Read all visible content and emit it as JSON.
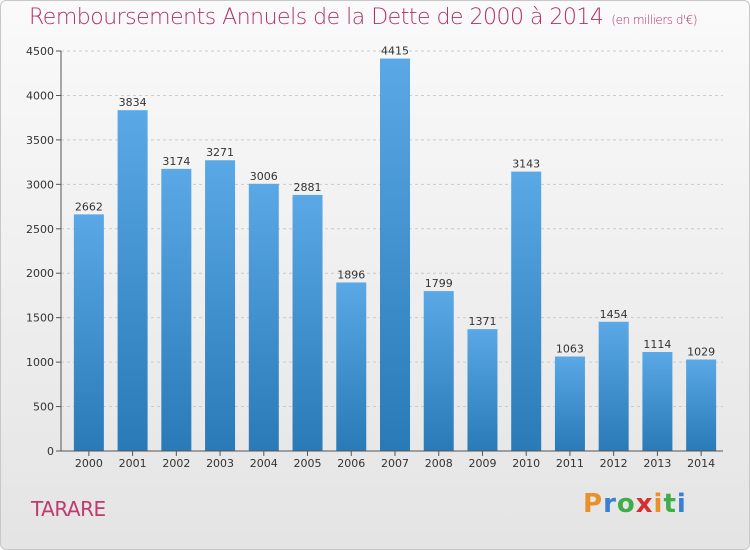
{
  "title": "Remboursements Annuels de la Dette de 2000 à 2014",
  "subtitle": "(en milliers d'€)",
  "city": "TARARE",
  "logo": {
    "text": "Proxiti",
    "letters": [
      "P",
      "r",
      "o",
      "x",
      "i",
      "t",
      "i"
    ]
  },
  "colors": {
    "title": "#b0306a",
    "bar_top": "#5aa8e6",
    "bar_bottom": "#2a7ab8",
    "grid": "#cccccc",
    "logo": [
      "#e8902a",
      "#3a7fd1",
      "#3fae49",
      "#d62f2f",
      "#e8902a",
      "#3fae49",
      "#3a7fd1"
    ]
  },
  "chart_data": {
    "type": "bar",
    "title": "Remboursements Annuels de la Dette de 2000 à 2014",
    "subtitle": "(en milliers d'€)",
    "xlabel": "",
    "ylabel": "",
    "categories": [
      "2000",
      "2001",
      "2002",
      "2003",
      "2004",
      "2005",
      "2006",
      "2007",
      "2008",
      "2009",
      "2010",
      "2011",
      "2012",
      "2013",
      "2014"
    ],
    "values": [
      2662,
      3834,
      3174,
      3271,
      3006,
      2881,
      1896,
      4415,
      1799,
      1371,
      3143,
      1063,
      1454,
      1114,
      1029
    ],
    "ylim": [
      0,
      4500
    ],
    "yticks": [
      0,
      500,
      1000,
      1500,
      2000,
      2500,
      3000,
      3500,
      4000,
      4500
    ],
    "grid": true,
    "legend": "none"
  }
}
